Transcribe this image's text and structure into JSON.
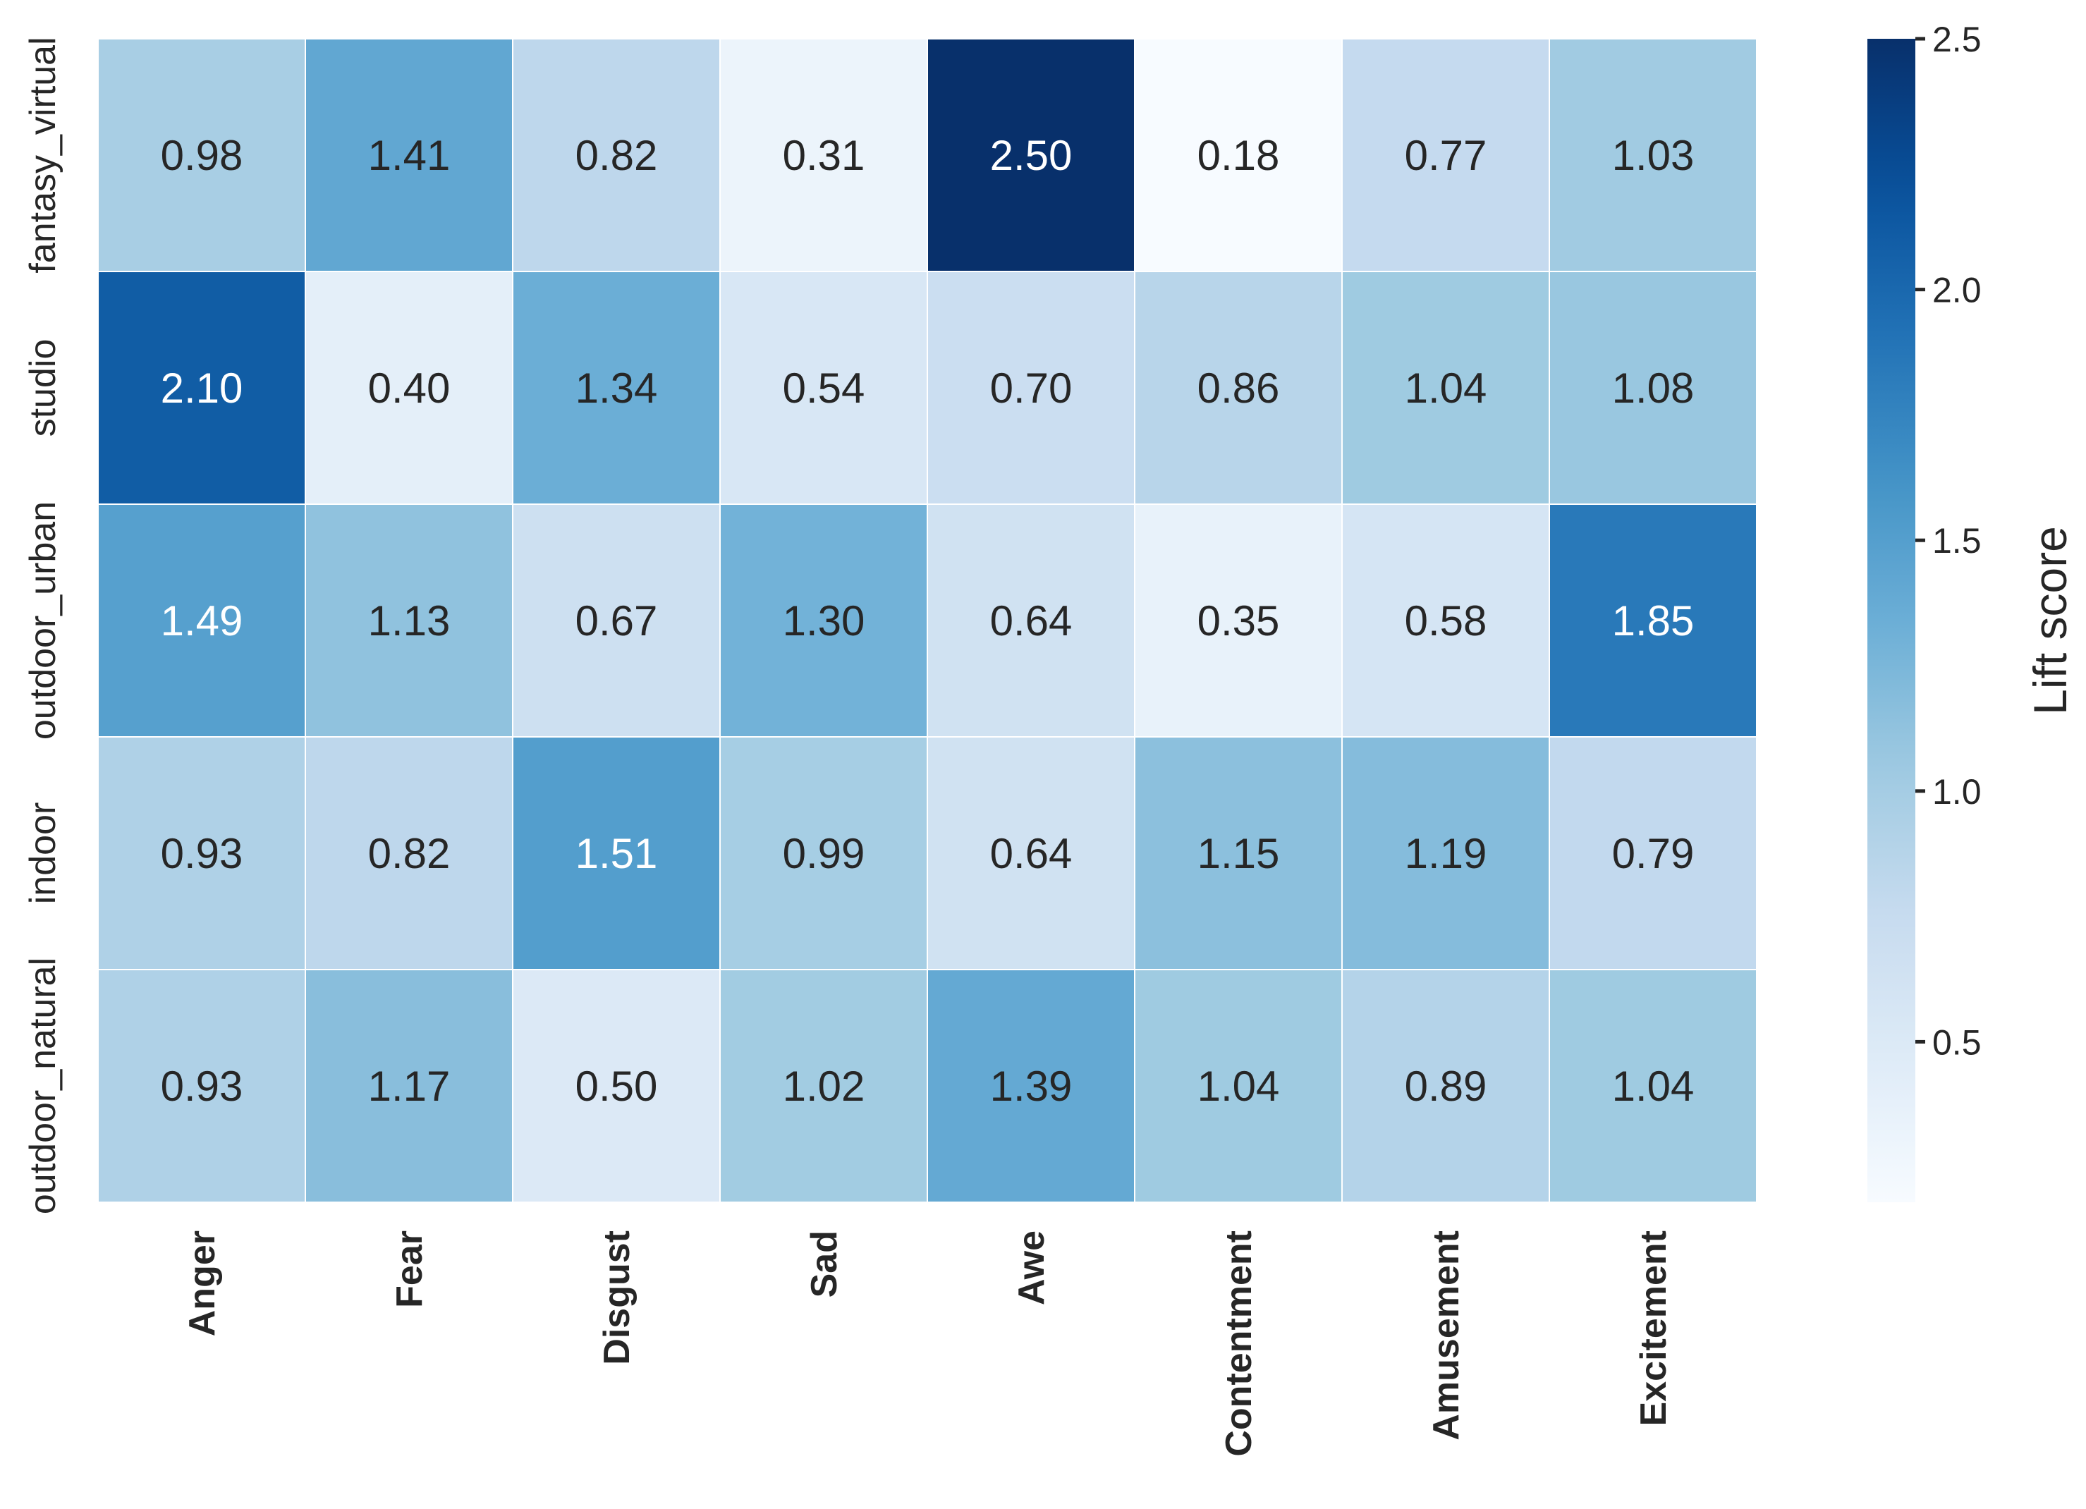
{
  "chart_data": {
    "type": "heatmap",
    "rows": [
      "fantasy_virtual",
      "studio",
      "outdoor_urban",
      "indoor",
      "outdoor_natural"
    ],
    "columns": [
      "Anger",
      "Fear",
      "Disgust",
      "Sad",
      "Awe",
      "Contentment",
      "Amusement",
      "Excitement"
    ],
    "values": [
      [
        0.98,
        1.41,
        0.82,
        0.31,
        2.5,
        0.18,
        0.77,
        1.03
      ],
      [
        2.1,
        0.4,
        1.34,
        0.54,
        0.7,
        0.86,
        1.04,
        1.08
      ],
      [
        1.49,
        1.13,
        0.67,
        1.3,
        0.64,
        0.35,
        0.58,
        1.85
      ],
      [
        0.93,
        0.82,
        1.51,
        0.99,
        0.64,
        1.15,
        1.19,
        0.79
      ],
      [
        0.93,
        1.17,
        0.5,
        1.02,
        1.39,
        1.04,
        0.89,
        1.04
      ]
    ],
    "value_format": "0.00",
    "colormap": "Blues",
    "vmin": 0.18,
    "vmax": 2.5,
    "colorbar": {
      "label": "Lift score",
      "ticks": [
        0.5,
        1.0,
        1.5,
        2.0,
        2.5
      ],
      "tick_labels": [
        "0.5",
        "1.0",
        "1.5",
        "2.0",
        "2.5"
      ]
    }
  }
}
